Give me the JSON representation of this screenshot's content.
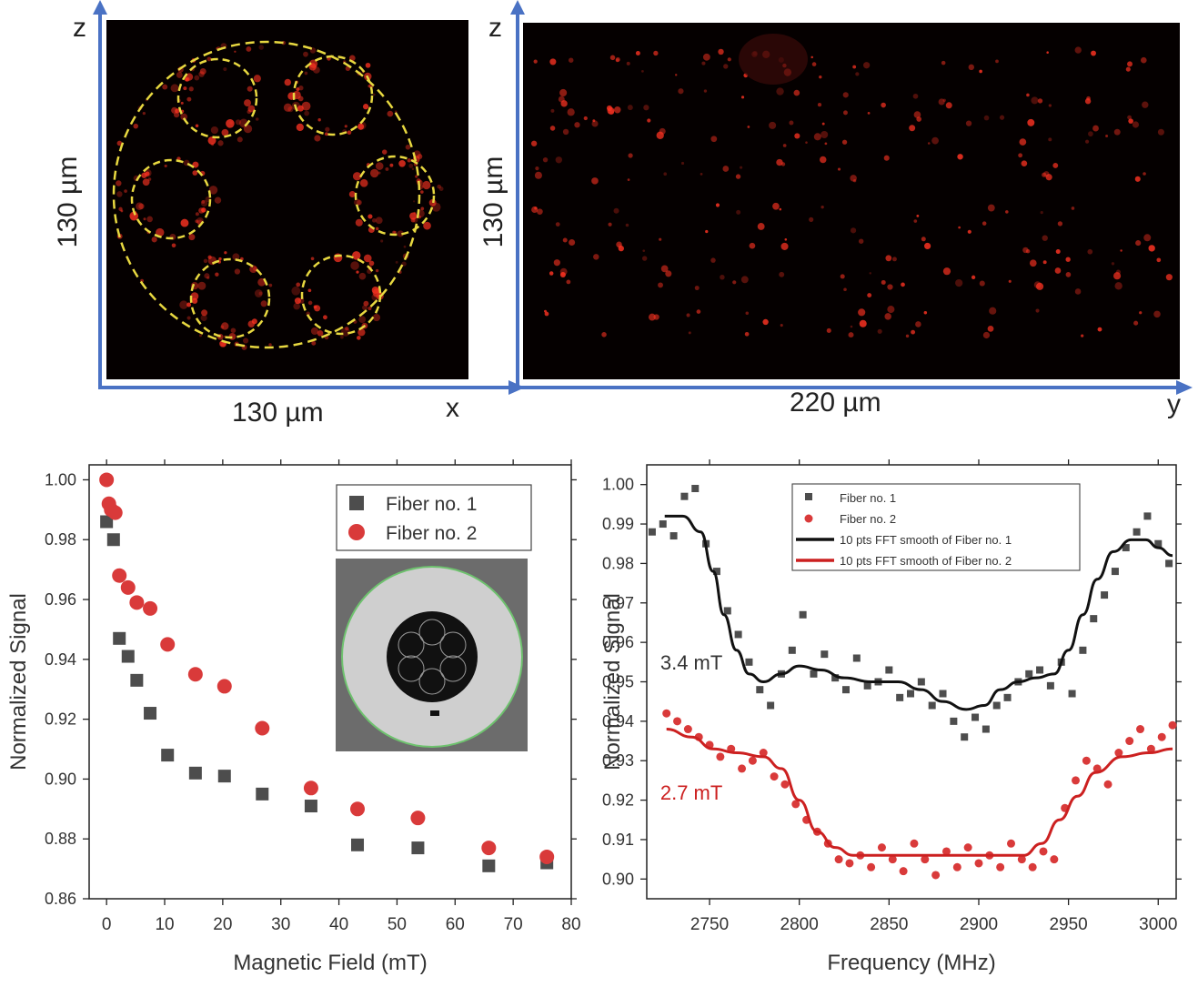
{
  "top_left": {
    "axis_top": "z",
    "axis_right": "x",
    "side_label": "130 µm",
    "bottom_label": "130 µm"
  },
  "top_right": {
    "axis_top": "z",
    "axis_right": "y",
    "side_label": "130 µm",
    "bottom_label": "220 µm"
  },
  "colors": {
    "axis_blue": "#4a72c4",
    "fiber1": "#4d4d4d",
    "fiber2": "#d93a3a",
    "dashed_yellow": "#e8d840",
    "smooth1": "#111111",
    "smooth2": "#cc2020"
  },
  "chart_data": [
    {
      "type": "scatter",
      "xlabel": "Magnetic Field (mT)",
      "ylabel": "Normalized Signal",
      "xlim": [
        -3,
        80
      ],
      "ylim": [
        0.86,
        1.005
      ],
      "xticks": [
        0,
        10,
        20,
        30,
        40,
        50,
        60,
        70,
        80
      ],
      "yticks": [
        0.86,
        0.88,
        0.9,
        0.92,
        0.94,
        0.96,
        0.98,
        1.0
      ],
      "ytick_labels": [
        "0.86",
        "0.88",
        "0.90",
        "0.92",
        "0.94",
        "0.96",
        "0.98",
        "1.00"
      ],
      "legend_position": "top-right",
      "series": [
        {
          "name": "Fiber no. 1",
          "marker": "square",
          "x": [
            0,
            1.2,
            2.2,
            3.7,
            5.2,
            7.5,
            10.5,
            15.3,
            20.3,
            26.8,
            35.2,
            43.2,
            53.6,
            65.8,
            75.8
          ],
          "y": [
            0.986,
            0.98,
            0.947,
            0.941,
            0.933,
            0.922,
            0.908,
            0.902,
            0.901,
            0.895,
            0.891,
            0.878,
            0.877,
            0.871,
            0.872
          ]
        },
        {
          "name": "Fiber no. 2",
          "marker": "circle",
          "x": [
            0,
            0.4,
            0.8,
            1.5,
            2.2,
            3.7,
            5.2,
            7.5,
            10.5,
            15.3,
            20.3,
            26.8,
            35.2,
            43.2,
            53.6,
            65.8,
            75.8
          ],
          "y": [
            1.0,
            0.992,
            0.99,
            0.989,
            0.968,
            0.964,
            0.959,
            0.957,
            0.945,
            0.935,
            0.931,
            0.917,
            0.897,
            0.89,
            0.887,
            0.877,
            0.874
          ]
        }
      ]
    },
    {
      "type": "scatter",
      "xlabel": "Frequency (MHz)",
      "ylabel": "Normalized Signal",
      "xlim": [
        2715,
        3010
      ],
      "ylim": [
        0.895,
        1.005
      ],
      "xticks": [
        2750,
        2800,
        2850,
        2900,
        2950,
        3000
      ],
      "yticks": [
        0.9,
        0.91,
        0.92,
        0.93,
        0.94,
        0.95,
        0.96,
        0.97,
        0.98,
        0.99,
        1.0
      ],
      "ytick_labels": [
        "0.90",
        "0.91",
        "0.92",
        "0.93",
        "0.94",
        "0.95",
        "0.96",
        "0.97",
        "0.98",
        "0.99",
        "1.00"
      ],
      "legend_position": "top-center",
      "annotations": [
        {
          "text": "3.4 mT",
          "x": 2720,
          "y": 0.955,
          "series": "Fiber no. 1"
        },
        {
          "text": "2.7 mT",
          "x": 2720,
          "y": 0.922,
          "series": "Fiber no. 2"
        }
      ],
      "series": [
        {
          "name": "Fiber no. 1",
          "marker": "square",
          "x": [
            2718,
            2724,
            2730,
            2736,
            2742,
            2748,
            2754,
            2760,
            2766,
            2772,
            2778,
            2784,
            2790,
            2796,
            2802,
            2808,
            2814,
            2820,
            2826,
            2832,
            2838,
            2844,
            2850,
            2856,
            2862,
            2868,
            2874,
            2880,
            2886,
            2892,
            2898,
            2904,
            2910,
            2916,
            2922,
            2928,
            2934,
            2940,
            2946,
            2952,
            2958,
            2964,
            2970,
            2976,
            2982,
            2988,
            2994,
            3000,
            3006
          ],
          "y": [
            0.988,
            0.99,
            0.987,
            0.997,
            0.999,
            0.985,
            0.978,
            0.968,
            0.962,
            0.955,
            0.948,
            0.944,
            0.952,
            0.958,
            0.967,
            0.952,
            0.957,
            0.951,
            0.948,
            0.956,
            0.949,
            0.95,
            0.953,
            0.946,
            0.947,
            0.95,
            0.944,
            0.947,
            0.94,
            0.936,
            0.941,
            0.938,
            0.944,
            0.946,
            0.95,
            0.952,
            0.953,
            0.949,
            0.955,
            0.947,
            0.958,
            0.966,
            0.972,
            0.978,
            0.984,
            0.988,
            0.992,
            0.985,
            0.98
          ]
        },
        {
          "name": "Fiber no. 2",
          "marker": "circle",
          "x": [
            2726,
            2732,
            2738,
            2744,
            2750,
            2756,
            2762,
            2768,
            2774,
            2780,
            2786,
            2792,
            2798,
            2804,
            2810,
            2816,
            2822,
            2828,
            2834,
            2840,
            2846,
            2852,
            2858,
            2864,
            2870,
            2876,
            2882,
            2888,
            2894,
            2900,
            2906,
            2912,
            2918,
            2924,
            2930,
            2936,
            2942,
            2948,
            2954,
            2960,
            2966,
            2972,
            2978,
            2984,
            2990,
            2996,
            3002,
            3008
          ],
          "y": [
            0.942,
            0.94,
            0.938,
            0.936,
            0.934,
            0.931,
            0.933,
            0.928,
            0.93,
            0.932,
            0.926,
            0.924,
            0.919,
            0.915,
            0.912,
            0.909,
            0.905,
            0.904,
            0.906,
            0.903,
            0.908,
            0.905,
            0.902,
            0.909,
            0.905,
            0.901,
            0.907,
            0.903,
            0.908,
            0.904,
            0.906,
            0.903,
            0.909,
            0.905,
            0.903,
            0.907,
            0.905,
            0.918,
            0.925,
            0.93,
            0.928,
            0.924,
            0.932,
            0.935,
            0.938,
            0.933,
            0.936,
            0.939
          ]
        },
        {
          "name": "10 pts FFT smooth of Fiber no. 1",
          "marker": "line",
          "x": [
            2725,
            2735,
            2745,
            2752,
            2758,
            2765,
            2772,
            2780,
            2790,
            2800,
            2812,
            2825,
            2840,
            2855,
            2868,
            2880,
            2893,
            2903,
            2912,
            2922,
            2932,
            2942,
            2950,
            2958,
            2966,
            2975,
            2985,
            2993,
            3000,
            3008
          ],
          "y": [
            0.992,
            0.992,
            0.988,
            0.978,
            0.967,
            0.958,
            0.952,
            0.95,
            0.952,
            0.954,
            0.953,
            0.951,
            0.95,
            0.95,
            0.948,
            0.945,
            0.943,
            0.944,
            0.948,
            0.95,
            0.951,
            0.952,
            0.958,
            0.967,
            0.976,
            0.983,
            0.986,
            0.986,
            0.984,
            0.982
          ]
        },
        {
          "name": "10 pts FFT smooth of Fiber no. 2",
          "marker": "line",
          "x": [
            2726,
            2740,
            2752,
            2765,
            2780,
            2790,
            2800,
            2810,
            2820,
            2830,
            2845,
            2860,
            2880,
            2900,
            2915,
            2925,
            2935,
            2945,
            2955,
            2965,
            2980,
            2995,
            3008
          ],
          "y": [
            0.938,
            0.936,
            0.933,
            0.932,
            0.931,
            0.928,
            0.92,
            0.912,
            0.908,
            0.906,
            0.906,
            0.906,
            0.906,
            0.906,
            0.906,
            0.906,
            0.909,
            0.915,
            0.921,
            0.927,
            0.931,
            0.932,
            0.933
          ]
        }
      ]
    }
  ]
}
